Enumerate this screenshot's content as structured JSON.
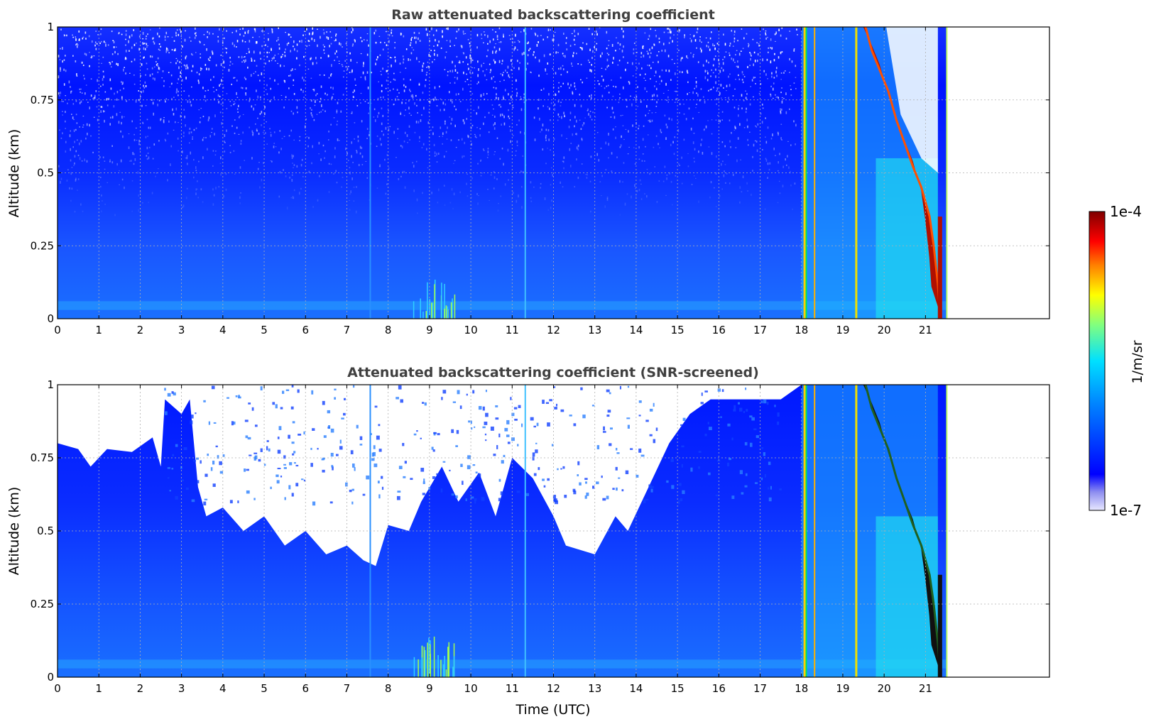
{
  "chart_data": [
    {
      "type": "heatmap",
      "title": "Raw attenuated backscattering coefficient",
      "xlabel": "",
      "ylabel": "Altitude (km)",
      "x_ticks": [
        "0",
        "1",
        "2",
        "3",
        "4",
        "5",
        "6",
        "7",
        "8",
        "9",
        "10",
        "11",
        "12",
        "13",
        "14",
        "15",
        "16",
        "17",
        "18",
        "19",
        "20",
        "21"
      ],
      "y_ticks": [
        "0",
        "0.25",
        "0.5",
        "0.75",
        "1"
      ],
      "xlim": [
        0,
        24
      ],
      "ylim": [
        0,
        1
      ],
      "grid": true,
      "data_end_time": 21.5,
      "features": [
        {
          "time": 18.05,
          "description": "vertical high-backscatter streak"
        },
        {
          "time": 18.3,
          "description": "vertical high-backscatter streak"
        },
        {
          "time": 19.3,
          "description": "vertical high-backscatter streak"
        },
        {
          "time_range": [
            19.5,
            21.4
          ],
          "altitude_range": [
            0.05,
            1.0
          ],
          "description": "descending cloud layer near 1e-4"
        }
      ]
    },
    {
      "type": "heatmap",
      "title": "Attenuated backscattering coefficient (SNR-screened)",
      "xlabel": "Time (UTC)",
      "ylabel": "Altitude (km)",
      "x_ticks": [
        "0",
        "1",
        "2",
        "3",
        "4",
        "5",
        "6",
        "7",
        "8",
        "9",
        "10",
        "11",
        "12",
        "13",
        "14",
        "15",
        "16",
        "17",
        "18",
        "19",
        "20",
        "21"
      ],
      "y_ticks": [
        "0",
        "0.25",
        "0.5",
        "0.75",
        "1"
      ],
      "xlim": [
        0,
        24
      ],
      "ylim": [
        0,
        1
      ],
      "grid": true,
      "data_end_time": 21.5,
      "screened_top_km": [
        [
          0,
          0.8
        ],
        [
          0.5,
          0.78
        ],
        [
          0.8,
          0.72
        ],
        [
          1.2,
          0.78
        ],
        [
          1.8,
          0.77
        ],
        [
          2.3,
          0.82
        ],
        [
          2.5,
          0.72
        ],
        [
          2.6,
          0.95
        ],
        [
          3.0,
          0.9
        ],
        [
          3.2,
          0.95
        ],
        [
          3.4,
          0.65
        ],
        [
          3.6,
          0.55
        ],
        [
          4.0,
          0.58
        ],
        [
          4.5,
          0.5
        ],
        [
          5.0,
          0.55
        ],
        [
          5.5,
          0.45
        ],
        [
          6.0,
          0.5
        ],
        [
          6.5,
          0.42
        ],
        [
          7.0,
          0.45
        ],
        [
          7.4,
          0.4
        ],
        [
          7.7,
          0.38
        ],
        [
          8.0,
          0.52
        ],
        [
          8.5,
          0.5
        ],
        [
          8.8,
          0.6
        ],
        [
          9.3,
          0.72
        ],
        [
          9.7,
          0.6
        ],
        [
          10.2,
          0.7
        ],
        [
          10.6,
          0.55
        ],
        [
          11.0,
          0.75
        ],
        [
          11.5,
          0.68
        ],
        [
          12.0,
          0.55
        ],
        [
          12.3,
          0.45
        ],
        [
          13.0,
          0.42
        ],
        [
          13.5,
          0.55
        ],
        [
          13.8,
          0.5
        ],
        [
          14.3,
          0.65
        ],
        [
          14.8,
          0.8
        ],
        [
          15.3,
          0.9
        ],
        [
          15.8,
          0.95
        ],
        [
          16.3,
          0.95
        ],
        [
          17.0,
          0.95
        ],
        [
          17.5,
          0.95
        ],
        [
          18.0,
          1.0
        ],
        [
          21.5,
          1.0
        ]
      ],
      "features": [
        {
          "time_range": [
            19.9,
            21.4
          ],
          "altitude_range": [
            0.05,
            1.0
          ],
          "description": "saturated (black) descending cloud layer"
        }
      ]
    }
  ],
  "colorbar": {
    "label": "1/m/sr",
    "max_label": "1e-4",
    "min_label": "1e-7",
    "scale": "log",
    "range": [
      1e-07,
      0.0001
    ],
    "colormap": "jet"
  }
}
